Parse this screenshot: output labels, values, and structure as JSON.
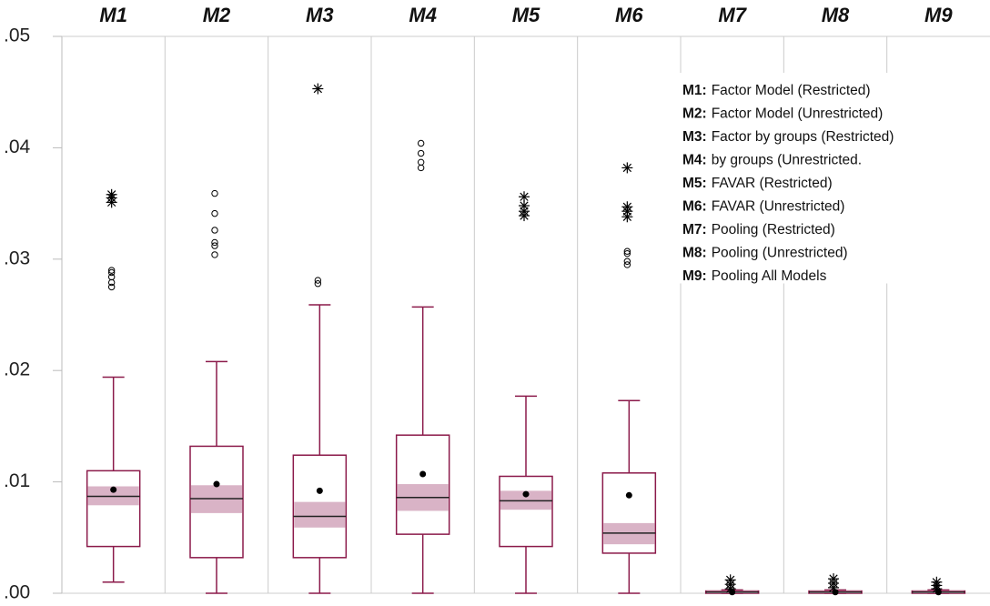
{
  "chart_data": {
    "type": "box",
    "categories": [
      "M1",
      "M2",
      "M3",
      "M4",
      "M5",
      "M6",
      "M7",
      "M8",
      "M9"
    ],
    "ylim": [
      0,
      0.05
    ],
    "yticks": [
      {
        "value": 0,
        "label": ".00"
      },
      {
        "value": 0.01,
        "label": ".01"
      },
      {
        "value": 0.02,
        "label": ".02"
      },
      {
        "value": 0.03,
        "label": ".03"
      },
      {
        "value": 0.04,
        "label": ".04"
      },
      {
        "value": 0.05,
        "label": ".05"
      }
    ],
    "box_color": "#8b1a4a",
    "band_color": "#d9b3c6",
    "mean_color": "#000000",
    "boxes": [
      {
        "low": 0.001,
        "q1": 0.0042,
        "median": 0.0087,
        "q3": 0.011,
        "high": 0.0194,
        "mean": 0.0093,
        "ci": [
          0.0079,
          0.0096
        ],
        "outliers_circle": [
          0.0275,
          0.0279,
          0.0284,
          0.0288,
          0.029
        ],
        "outliers_star": [
          0.0351,
          0.0355,
          0.0358
        ]
      },
      {
        "low": 0,
        "q1": 0.0032,
        "median": 0.0085,
        "q3": 0.0132,
        "high": 0.0208,
        "mean": 0.0098,
        "ci": [
          0.0072,
          0.0097
        ],
        "outliers_circle": [
          0.0304,
          0.0312,
          0.0315,
          0.0326,
          0.0341,
          0.0359
        ],
        "outliers_star": []
      },
      {
        "low": 0,
        "q1": 0.0032,
        "median": 0.0069,
        "q3": 0.0124,
        "high": 0.0259,
        "mean": 0.0092,
        "ci": [
          0.0059,
          0.0082
        ],
        "outliers_circle": [
          0.0278,
          0.0281
        ],
        "outliers_star": [
          0.0453
        ]
      },
      {
        "low": 0,
        "q1": 0.0053,
        "median": 0.0086,
        "q3": 0.0142,
        "high": 0.0257,
        "mean": 0.0107,
        "ci": [
          0.0074,
          0.0098
        ],
        "outliers_circle": [
          0.0382,
          0.0387,
          0.0395,
          0.0404
        ],
        "outliers_star": []
      },
      {
        "low": 0,
        "q1": 0.0042,
        "median": 0.0083,
        "q3": 0.0105,
        "high": 0.0177,
        "mean": 0.0089,
        "ci": [
          0.0075,
          0.0092
        ],
        "outliers_circle": [],
        "outliers_star": [
          0.0339,
          0.0343,
          0.0348,
          0.0356
        ]
      },
      {
        "low": 0,
        "q1": 0.0036,
        "median": 0.0054,
        "q3": 0.0108,
        "high": 0.0173,
        "mean": 0.0088,
        "ci": [
          0.0044,
          0.0063
        ],
        "outliers_circle": [
          0.0295,
          0.0298,
          0.0305,
          0.0307
        ],
        "outliers_star": [
          0.0338,
          0.0343,
          0.0347,
          0.0382
        ]
      },
      {
        "low": 0,
        "q1": 0,
        "median": 0.0001,
        "q3": 0.0002,
        "high": 0.0003,
        "mean": 0.0001,
        "ci": [
          0,
          0.0002
        ],
        "outliers_circle": [],
        "outliers_star": [
          0.0004,
          0.0008,
          0.0012
        ]
      },
      {
        "low": 0,
        "q1": 0,
        "median": 0.0001,
        "q3": 0.0002,
        "high": 0.0003,
        "mean": 0.0001,
        "ci": [
          0,
          0.0002
        ],
        "outliers_circle": [],
        "outliers_star": [
          0.0005,
          0.0009,
          0.0013
        ]
      },
      {
        "low": 0,
        "q1": 0,
        "median": 0.0001,
        "q3": 0.0002,
        "high": 0.0003,
        "mean": 0.0001,
        "ci": [
          0,
          0.0002
        ],
        "outliers_circle": [],
        "outliers_star": [
          0.0004,
          0.0007,
          0.001
        ]
      }
    ],
    "legend": [
      {
        "key": "M1:",
        "description": "Factor Model (Restricted)"
      },
      {
        "key": "M2:",
        "description": "Factor Model (Unrestricted)"
      },
      {
        "key": "M3:",
        "description": "Factor by groups (Restricted)"
      },
      {
        "key": "M4:",
        "description": "by groups (Unrestricted."
      },
      {
        "key": "M5:",
        "description": "FAVAR (Restricted)"
      },
      {
        "key": "M6:",
        "description": "FAVAR (Unrestricted)"
      },
      {
        "key": "M7:",
        "description": "Pooling (Restricted)"
      },
      {
        "key": "M8:",
        "description": "Pooling (Unrestricted)"
      },
      {
        "key": "M9:",
        "description": "Pooling All Models"
      }
    ]
  }
}
